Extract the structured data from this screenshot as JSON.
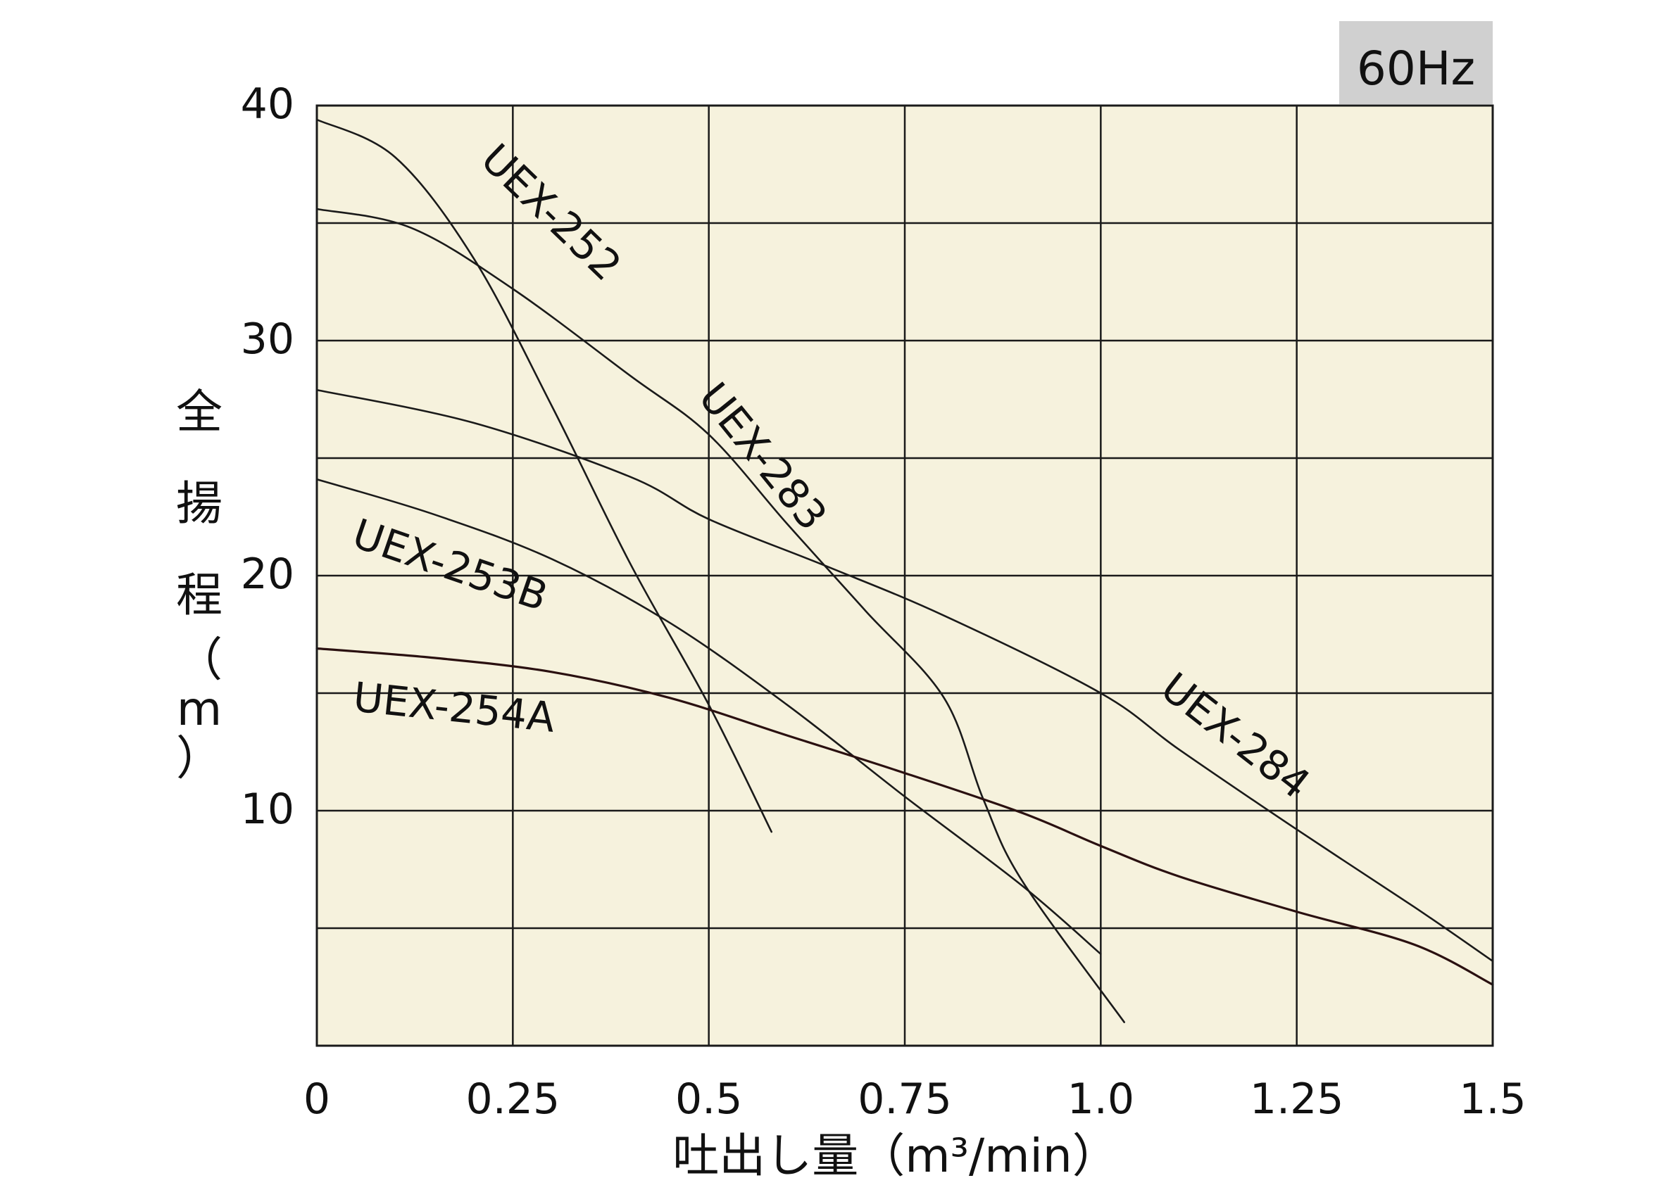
{
  "badge": {
    "text": "60Hz"
  },
  "colors": {
    "plot_background": "#f6f2dd",
    "grid": "#1a1a1a",
    "curve": "#1a1a1a",
    "curve_254A": "#2a1010",
    "badge_background": "#d0d0d0",
    "text": "#111111"
  },
  "chart_data": {
    "type": "line",
    "title": "",
    "xlabel": "吐出し量（m³/min）",
    "ylabel": "全揚程（m）",
    "ylabel_chars": [
      "全",
      "揚",
      "程",
      "（",
      "m",
      "）"
    ],
    "xlim": [
      0,
      1.5
    ],
    "ylim": [
      0,
      40
    ],
    "grid": true,
    "x_ticks": [
      0,
      0.25,
      0.5,
      0.75,
      1.0,
      1.25,
      1.5
    ],
    "x_tick_labels": [
      "0",
      "0.25",
      "0.5",
      "0.75",
      "1.0",
      "1.25",
      "1.5"
    ],
    "y_ticks": [
      10,
      20,
      30,
      40
    ],
    "y_tick_labels": [
      "10",
      "20",
      "30",
      "40"
    ],
    "y_gridlines": [
      5,
      10,
      15,
      20,
      25,
      30,
      35,
      40
    ],
    "series": [
      {
        "name": "UEX-252",
        "label_rotation": 44,
        "points": [
          [
            0,
            39.4
          ],
          [
            0.1,
            37.8
          ],
          [
            0.2,
            33.5
          ],
          [
            0.3,
            27.2
          ],
          [
            0.4,
            20.5
          ],
          [
            0.5,
            14.5
          ],
          [
            0.58,
            9.1
          ]
        ]
      },
      {
        "name": "UEX-283",
        "label_rotation": 51,
        "points": [
          [
            0,
            35.6
          ],
          [
            0.12,
            34.8
          ],
          [
            0.25,
            32.2
          ],
          [
            0.4,
            28.5
          ],
          [
            0.5,
            26.0
          ],
          [
            0.6,
            22.2
          ],
          [
            0.7,
            18.5
          ],
          [
            0.8,
            14.8
          ],
          [
            0.85,
            10.5
          ],
          [
            0.9,
            7.0
          ],
          [
            1.03,
            1.0
          ]
        ]
      },
      {
        "name": "UEX-284",
        "label_rotation": 38,
        "points": [
          [
            0,
            27.9
          ],
          [
            0.2,
            26.5
          ],
          [
            0.4,
            24.2
          ],
          [
            0.5,
            22.4
          ],
          [
            0.65,
            20.4
          ],
          [
            0.8,
            18.3
          ],
          [
            1.0,
            15.0
          ],
          [
            1.1,
            12.6
          ],
          [
            1.25,
            9.2
          ],
          [
            1.4,
            5.9
          ],
          [
            1.5,
            3.6
          ]
        ]
      },
      {
        "name": "UEX-253B",
        "label_rotation": 19,
        "points": [
          [
            0,
            24.1
          ],
          [
            0.15,
            22.6
          ],
          [
            0.3,
            20.7
          ],
          [
            0.45,
            18.0
          ],
          [
            0.6,
            14.5
          ],
          [
            0.75,
            10.6
          ],
          [
            0.9,
            6.8
          ],
          [
            1.0,
            3.9
          ]
        ]
      },
      {
        "name": "UEX-254A",
        "label_rotation": 6,
        "points": [
          [
            0,
            16.9
          ],
          [
            0.15,
            16.5
          ],
          [
            0.3,
            15.9
          ],
          [
            0.45,
            14.8
          ],
          [
            0.6,
            13.2
          ],
          [
            0.75,
            11.6
          ],
          [
            0.9,
            9.9
          ],
          [
            1.0,
            8.5
          ],
          [
            1.1,
            7.2
          ],
          [
            1.25,
            5.7
          ],
          [
            1.4,
            4.3
          ],
          [
            1.5,
            2.6
          ]
        ]
      }
    ]
  }
}
